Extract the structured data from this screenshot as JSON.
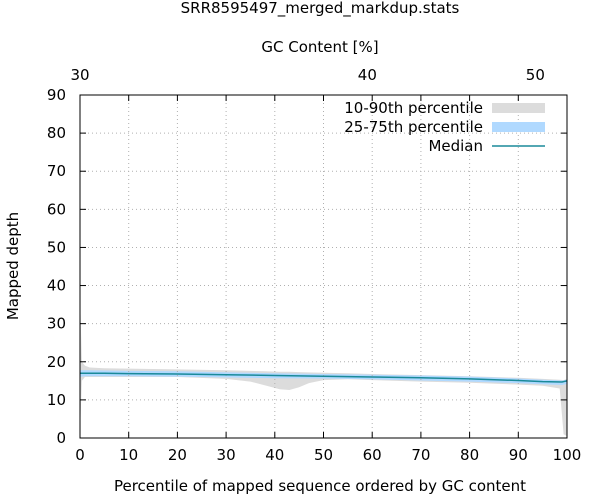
{
  "chart_data": {
    "type": "area",
    "title": "SRR8595497_merged_markdup.stats",
    "xlabel": "Percentile of mapped sequence ordered by GC content",
    "ylabel": "Mapped depth",
    "x2label": "GC Content [%]",
    "xlim": [
      0,
      100
    ],
    "ylim": [
      0,
      90
    ],
    "x_ticks": [
      0,
      10,
      20,
      30,
      40,
      50,
      60,
      70,
      80,
      90,
      100
    ],
    "y_ticks": [
      0,
      10,
      20,
      30,
      40,
      50,
      60,
      70,
      80,
      90
    ],
    "x2_ticks": [
      {
        "label": "30",
        "x": 0
      },
      {
        "label": "40",
        "x": 59
      },
      {
        "label": "50",
        "x": 93.5
      }
    ],
    "grid": true,
    "legend_position": "top-right",
    "legend": [
      {
        "label": "10-90th percentile",
        "kind": "band",
        "color": "#dcdcdc"
      },
      {
        "label": "25-75th percentile",
        "kind": "band",
        "color": "#b0d9ff"
      },
      {
        "label": "Median",
        "kind": "line",
        "color": "#1a8a9a"
      }
    ],
    "series": [
      {
        "name": "10-90th percentile",
        "x": [
          0,
          0.4,
          1,
          2,
          5,
          10,
          20,
          30,
          35,
          38,
          41,
          43,
          45,
          47,
          50,
          55,
          60,
          70,
          80,
          90,
          95,
          98.5,
          99.3,
          100
        ],
        "lower": [
          2,
          15,
          16,
          16,
          16,
          16,
          16,
          15.5,
          14.8,
          13.8,
          12.8,
          12.6,
          13.3,
          14.4,
          15.2,
          15.4,
          15.2,
          14.8,
          14.5,
          14,
          13.7,
          13,
          1,
          0.5
        ],
        "upper": [
          37,
          20,
          19,
          18.5,
          18.3,
          18.2,
          18,
          17.8,
          17.6,
          17.5,
          17.4,
          17.4,
          17.3,
          17.2,
          17.1,
          17,
          16.8,
          16.5,
          16.2,
          15.8,
          15.5,
          15.3,
          15.2,
          15.5
        ]
      },
      {
        "name": "25-75th percentile",
        "x": [
          0,
          1,
          5,
          10,
          20,
          30,
          40,
          50,
          60,
          70,
          80,
          90,
          95,
          99,
          100
        ],
        "lower": [
          16,
          16.2,
          16.2,
          16.2,
          16.1,
          15.9,
          15.7,
          15.6,
          15.4,
          15.1,
          14.8,
          14.4,
          14.1,
          13.9,
          14.2
        ],
        "upper": [
          17.8,
          17.8,
          17.7,
          17.6,
          17.5,
          17.2,
          17,
          16.8,
          16.6,
          16.4,
          16.1,
          15.6,
          15.3,
          15.1,
          15.3
        ]
      },
      {
        "name": "Median",
        "x": [
          0,
          1,
          5,
          10,
          20,
          30,
          40,
          50,
          60,
          70,
          80,
          90,
          95,
          99,
          100
        ],
        "values": [
          17,
          17,
          17,
          16.9,
          16.8,
          16.6,
          16.4,
          16.2,
          16,
          15.8,
          15.5,
          15.1,
          14.8,
          14.7,
          15
        ]
      }
    ]
  }
}
